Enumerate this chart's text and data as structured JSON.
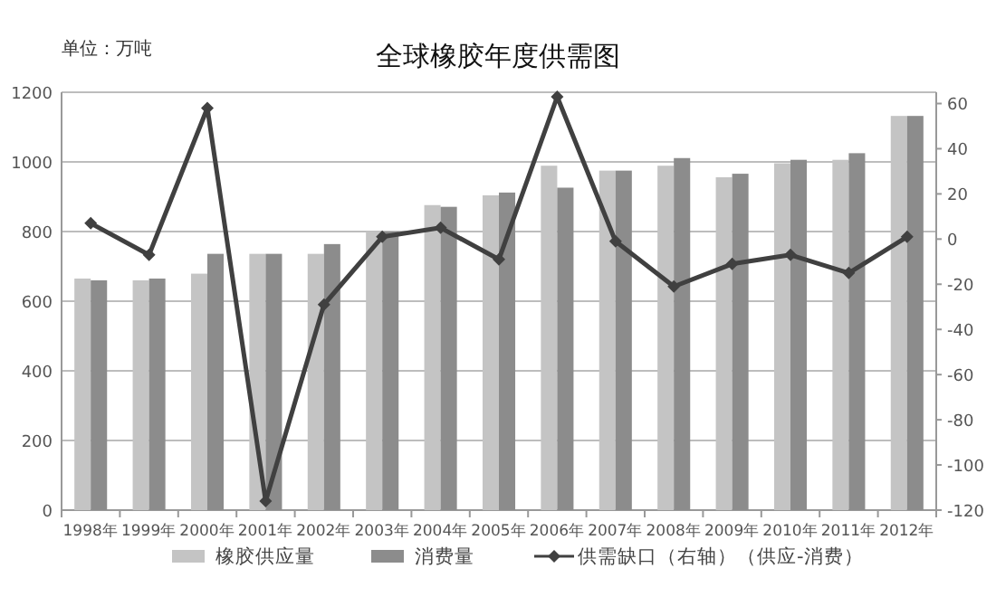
{
  "chart_data": {
    "type": "bar",
    "title": "全球橡胶年度供需图",
    "annotations": [
      "单位：万吨"
    ],
    "categories": [
      "1998年",
      "1999年",
      "2000年",
      "2001年",
      "2002年",
      "2003年",
      "2004年",
      "2005年",
      "2006年",
      "2007年",
      "2008年",
      "2009年",
      "2010年",
      "2011年",
      "2012年"
    ],
    "series": [
      {
        "name": "橡胶供应量",
        "color": "#c4c4c4",
        "values": [
          665,
          660,
          679,
          736,
          736,
          800,
          876,
          904,
          989,
          975,
          989,
          956,
          996,
          1006,
          1132
        ]
      },
      {
        "name": "消费量",
        "color": "#8c8c8c",
        "values": [
          660,
          665,
          736,
          736,
          764,
          800,
          871,
          912,
          926,
          975,
          1011,
          966,
          1006,
          1025,
          1132
        ]
      },
      {
        "name": "供需缺口（右轴）（供应-消费）",
        "type": "line",
        "axis": "y2",
        "marker": "diamond",
        "color": "#404040",
        "values": [
          7,
          -7,
          58,
          -116,
          -29,
          1,
          5,
          -9,
          63,
          -1,
          -21,
          -11,
          -7,
          -15,
          1
        ]
      }
    ],
    "ylim": [
      0,
      1200
    ],
    "yticks": [
      0,
      200,
      400,
      600,
      800,
      1000,
      1200
    ],
    "y2lim": [
      -120,
      65
    ],
    "y2ticks": [
      -120,
      -100,
      -80,
      -60,
      -40,
      -20,
      0,
      20,
      40,
      60
    ],
    "grid": "y",
    "legend": "bottom"
  }
}
